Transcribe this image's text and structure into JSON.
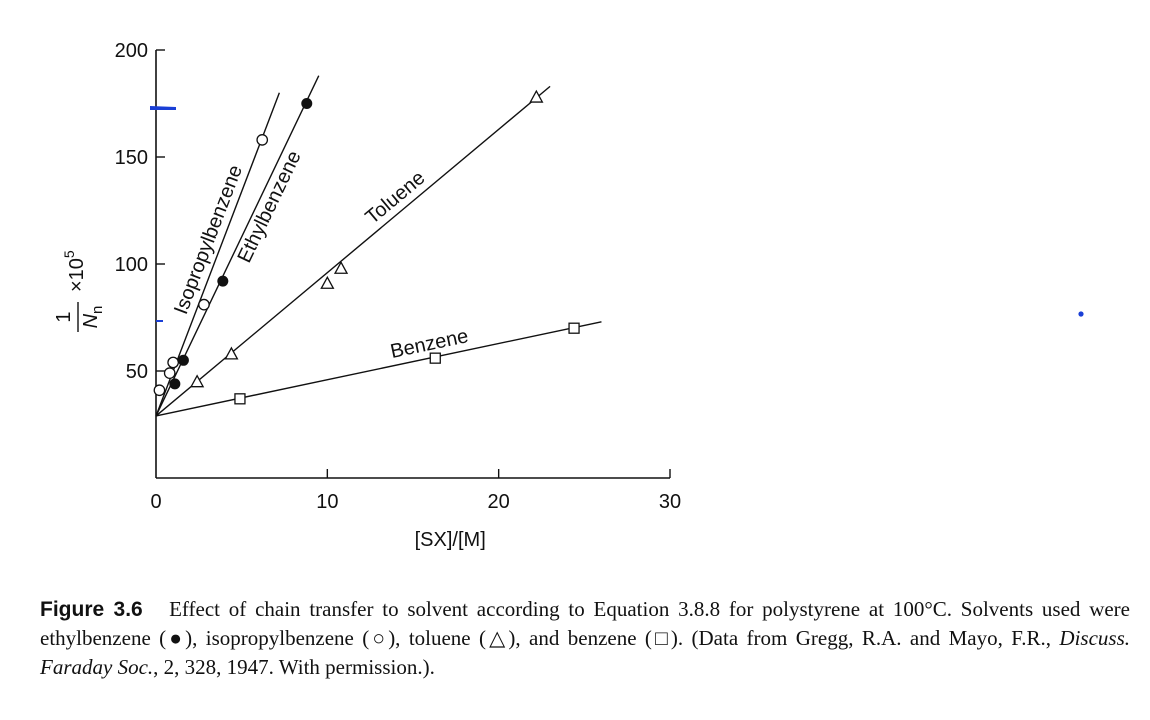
{
  "chart_data": {
    "type": "scatter",
    "xlabel": "[SX]/[M]",
    "ylabel": {
      "numerator": "1",
      "denominator_symbol": "N",
      "denominator_subscript": "n",
      "multiplier": "×10",
      "exponent": "5"
    },
    "xlim": [
      0,
      30
    ],
    "ylim": [
      0,
      200
    ],
    "x_ticks": [
      0,
      10,
      20,
      30
    ],
    "y_ticks": [
      50,
      100,
      150,
      200
    ],
    "x_tick_labels": [
      "0",
      "10",
      "20",
      "30"
    ],
    "y_tick_labels": [
      "50",
      "100",
      "150",
      "200"
    ],
    "intercept": 29,
    "series": [
      {
        "name": "Isopropylbenzene",
        "marker": "open-circle",
        "x": [
          0.2,
          0.8,
          1.0,
          2.8,
          6.2
        ],
        "y": [
          41,
          49,
          54,
          81,
          158
        ],
        "fit_end": [
          7.2,
          180
        ]
      },
      {
        "name": "Ethylbenzene",
        "marker": "filled-circle",
        "x": [
          1.1,
          1.6,
          3.9,
          8.8
        ],
        "y": [
          44,
          55,
          92,
          175
        ],
        "fit_end": [
          9.5,
          188
        ]
      },
      {
        "name": "Toluene",
        "marker": "open-triangle",
        "x": [
          2.4,
          4.4,
          10.0,
          10.8,
          22.2
        ],
        "y": [
          45,
          58,
          91,
          98,
          178
        ],
        "fit_end": [
          23.0,
          183
        ]
      },
      {
        "name": "Benzene",
        "marker": "open-square",
        "x": [
          4.9,
          16.3,
          24.4
        ],
        "y": [
          37,
          56,
          70
        ],
        "fit_end": [
          26.0,
          73
        ]
      }
    ]
  },
  "caption": {
    "figure_label": "Figure 3.6",
    "text_part1": "Effect of chain transfer to solvent according to Equation 3.8.8 for polystyrene at 100°C. Solvents used were ethylbenzene (●), isopropylbenzene (○), toluene (△), and benzene (□). (Data from Gregg, R.A. and Mayo, F.R., ",
    "journal": "Discuss. Faraday Soc.",
    "text_part2": ", 2, 328, 1947. With permission.)."
  }
}
